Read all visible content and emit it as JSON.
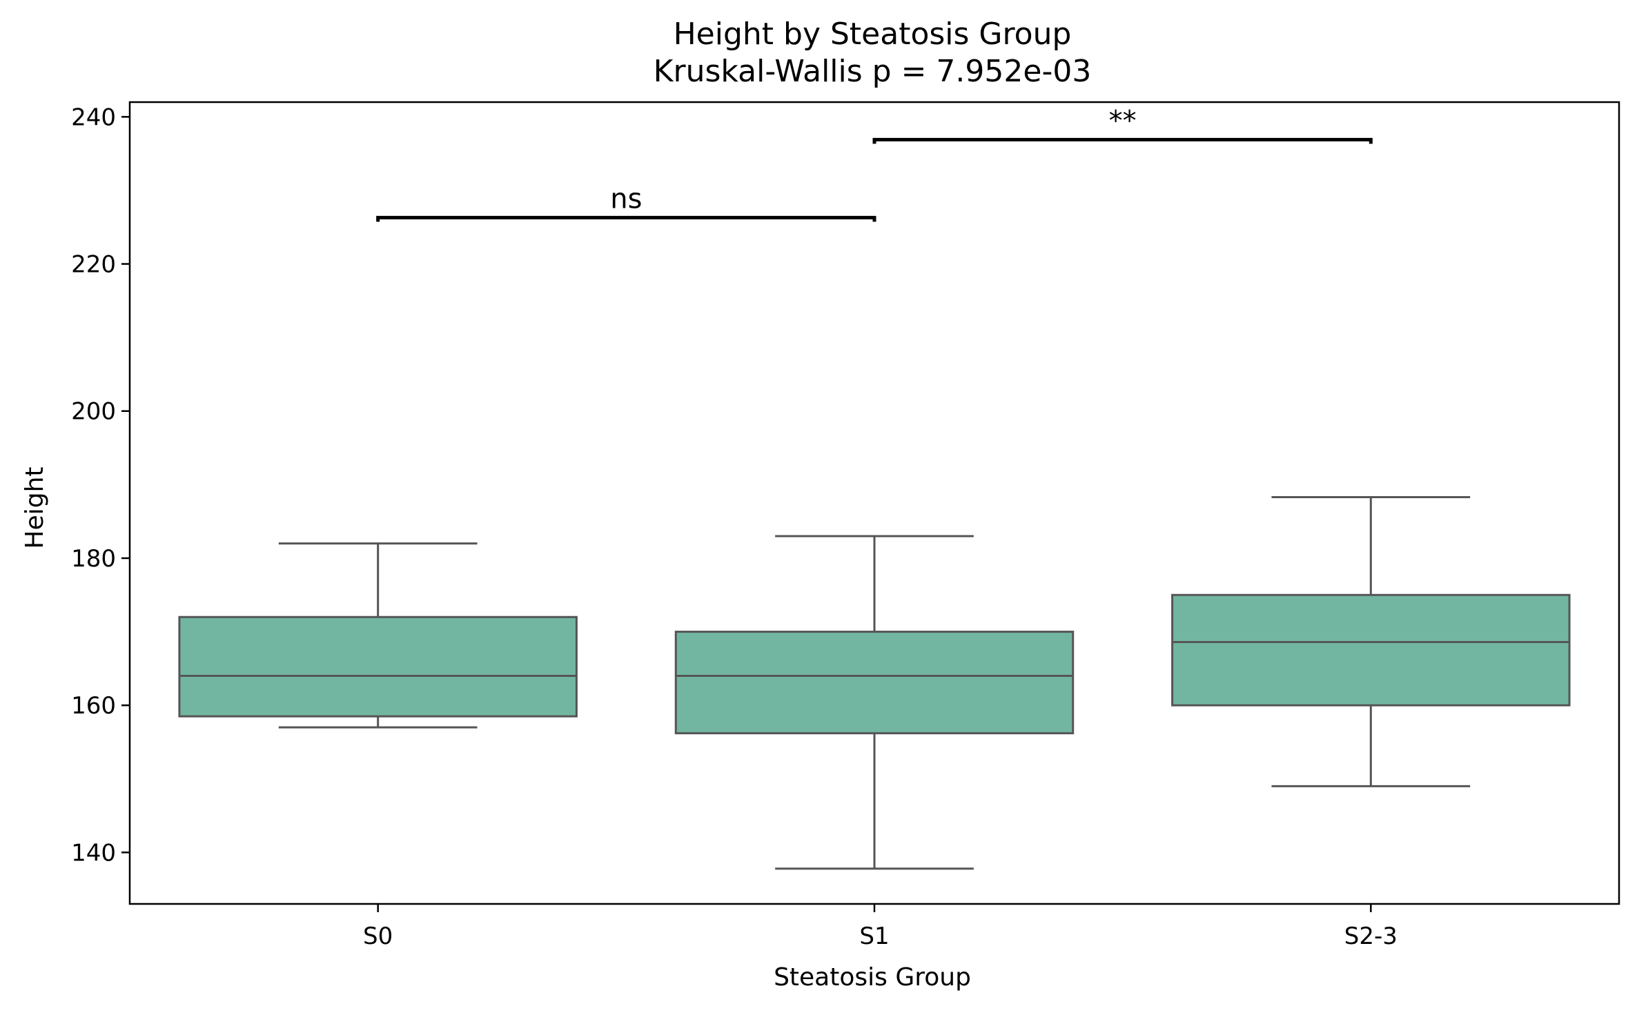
{
  "chart_data": {
    "type": "box",
    "title": "Height by Steatosis Group",
    "subtitle": "Kruskal-Wallis p = 7.952e-03",
    "xlabel": "Steatosis Group",
    "ylabel": "Height",
    "ylim": [
      133,
      242
    ],
    "yticks": [
      140,
      160,
      180,
      200,
      220,
      240
    ],
    "grid": false,
    "box_color": "#72b6a1",
    "line_color": "#555555",
    "categories": [
      "S0",
      "S1",
      "S2-3"
    ],
    "boxes": [
      {
        "category": "S0",
        "whisker_low": 157.0,
        "q1": 158.5,
        "median": 164.0,
        "q3": 172.0,
        "whisker_high": 182.0
      },
      {
        "category": "S1",
        "whisker_low": 137.8,
        "q1": 156.2,
        "median": 164.0,
        "q3": 170.0,
        "whisker_high": 183.0
      },
      {
        "category": "S2-3",
        "whisker_low": 149.0,
        "q1": 160.0,
        "median": 168.6,
        "q3": 175.0,
        "whisker_high": 188.3
      }
    ],
    "annotations": [
      {
        "from": "S0",
        "to": "S1",
        "y": 226.3,
        "label": "ns"
      },
      {
        "from": "S1",
        "to": "S2-3",
        "y": 236.9,
        "label": "**"
      }
    ]
  }
}
